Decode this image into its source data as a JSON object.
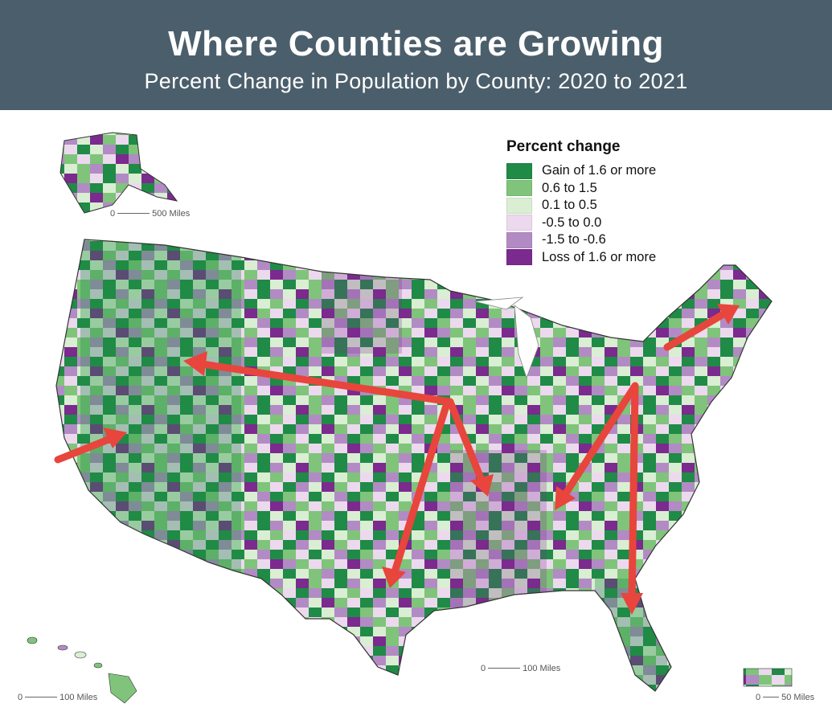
{
  "header": {
    "title": "Where Counties are Growing",
    "subtitle": "Percent Change in Population by County: 2020 to 2021"
  },
  "legend": {
    "title": "Percent change",
    "items": [
      {
        "label": "Gain of 1.6 or more",
        "color": "#1f8b46"
      },
      {
        "label": "0.6 to 1.5",
        "color": "#7fc47a"
      },
      {
        "label": "0.1 to 0.5",
        "color": "#d9eed2"
      },
      {
        "label": "-0.5 to 0.0",
        "color": "#ecd9ee"
      },
      {
        "label": "-1.5 to -0.6",
        "color": "#b28bc4"
      },
      {
        "label": "Loss of 1.6 or more",
        "color": "#7b2a8e"
      }
    ]
  },
  "scales": {
    "alaska": {
      "start": "0",
      "end": "500 Miles"
    },
    "conus": {
      "start": "0",
      "end": "100 Miles"
    },
    "hawaii": {
      "start": "0",
      "end": "100 Miles"
    },
    "puerto_rico": {
      "start": "0",
      "end": "50 Miles"
    }
  },
  "colors": {
    "arrow": "#e8453c",
    "border": "#333333"
  }
}
